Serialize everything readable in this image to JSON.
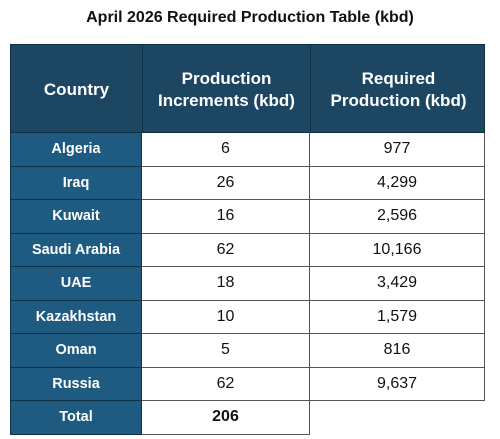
{
  "title": "April 2026 Required Production Table (kbd)",
  "table": {
    "headers": {
      "country": "Country",
      "increments": "Production\nIncrements (kbd)",
      "required": "Required\nProduction (kbd)"
    },
    "rows": [
      {
        "country": "Algeria",
        "increment": "6",
        "required": "977"
      },
      {
        "country": "Iraq",
        "increment": "26",
        "required": "4,299"
      },
      {
        "country": "Kuwait",
        "increment": "16",
        "required": "2,596"
      },
      {
        "country": "Saudi Arabia",
        "increment": "62",
        "required": "10,166"
      },
      {
        "country": "UAE",
        "increment": "18",
        "required": "3,429"
      },
      {
        "country": "Kazakhstan",
        "increment": "10",
        "required": "1,579"
      },
      {
        "country": "Oman",
        "increment": "5",
        "required": "816"
      },
      {
        "country": "Russia",
        "increment": "62",
        "required": "9,637"
      }
    ],
    "total": {
      "label": "Total",
      "increment": "206"
    }
  },
  "colors": {
    "header_bg": "#1d4663",
    "country_cell_bg": "#1f5a80",
    "header_text": "#ffffff",
    "cell_text": "#111111"
  }
}
